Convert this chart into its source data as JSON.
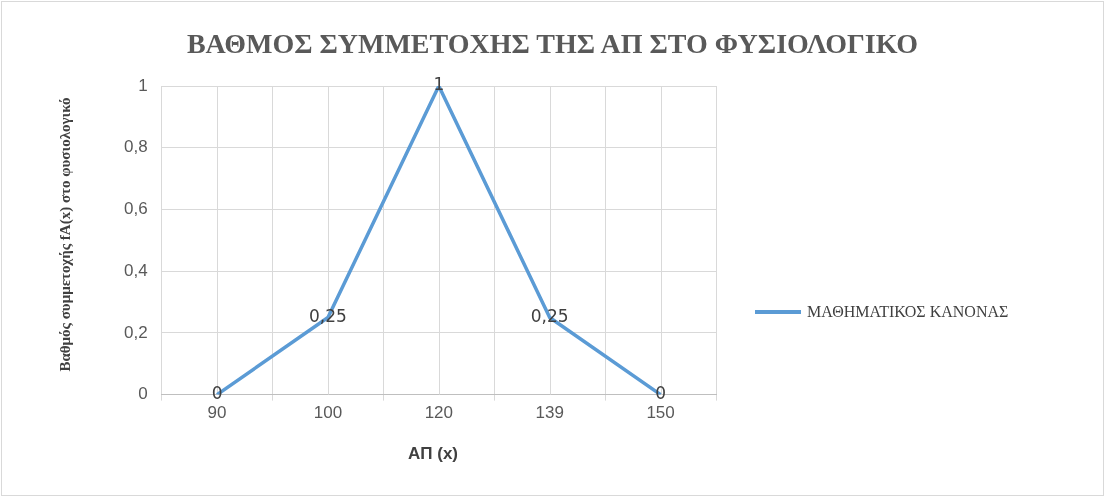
{
  "chart_data": {
    "type": "line",
    "title": "ΒΑΘΜΟΣ ΣΥΜΜΕΤΟΧΗΣ ΤΗΣ ΑΠ ΣΤΟ ΦΥΣΙΟΛΟΓΙΚΟ",
    "xlabel": "ΑΠ (x)",
    "ylabel": "Βαθμός συμμετοχής fA(x) στο φυσιολογικό",
    "categories": [
      "90",
      "100",
      "120",
      "139",
      "150"
    ],
    "series": [
      {
        "name": "ΜΑΘΗΜΑΤΙΚΟΣ ΚΑΝΟΝΑΣ",
        "color": "#5b9bd5",
        "values": [
          0,
          0.25,
          1,
          0.25,
          0
        ],
        "value_labels": [
          "0",
          "0,25",
          "1",
          "0,25",
          "0"
        ]
      }
    ],
    "ylim": [
      0,
      1
    ],
    "yticks": [
      0,
      {
        "value": 0.2,
        "label": "0,2"
      },
      {
        "value": 0.4,
        "label": "0,4"
      },
      {
        "value": 0.6,
        "label": "0,6"
      },
      {
        "value": 0.8,
        "label": "0,8"
      },
      1
    ],
    "grid": true,
    "legend": "right",
    "marker": "none",
    "line_style": "solid"
  }
}
